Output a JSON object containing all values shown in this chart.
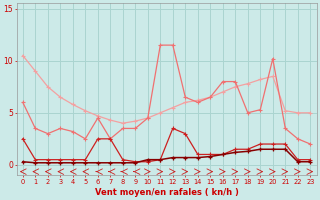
{
  "x": [
    0,
    1,
    2,
    3,
    4,
    5,
    6,
    7,
    8,
    9,
    10,
    11,
    12,
    13,
    14,
    15,
    16,
    17,
    18,
    19,
    20,
    21,
    22,
    23
  ],
  "series1": [
    10.5,
    9.0,
    7.5,
    6.5,
    5.8,
    5.2,
    4.7,
    4.3,
    4.0,
    4.2,
    4.5,
    5.0,
    5.5,
    6.0,
    6.2,
    6.5,
    7.0,
    7.5,
    7.8,
    8.2,
    8.5,
    5.2,
    5.0,
    5.0
  ],
  "series2": [
    6.0,
    3.5,
    3.0,
    3.5,
    3.2,
    2.5,
    4.5,
    2.5,
    3.5,
    3.5,
    4.5,
    11.5,
    11.5,
    6.5,
    6.0,
    6.5,
    8.0,
    8.0,
    5.0,
    5.3,
    10.2,
    3.5,
    2.5,
    2.0
  ],
  "series3": [
    2.5,
    0.5,
    0.5,
    0.5,
    0.5,
    0.5,
    2.5,
    2.5,
    0.5,
    0.3,
    0.3,
    0.5,
    3.5,
    3.0,
    1.0,
    1.0,
    1.0,
    1.5,
    1.5,
    2.0,
    2.0,
    2.0,
    0.5,
    0.5
  ],
  "series4": [
    0.3,
    0.2,
    0.2,
    0.2,
    0.2,
    0.2,
    0.2,
    0.2,
    0.2,
    0.2,
    0.5,
    0.5,
    0.7,
    0.7,
    0.7,
    0.8,
    1.0,
    1.2,
    1.3,
    1.5,
    1.5,
    1.5,
    0.3,
    0.3
  ],
  "color_s1": "#f4a0a0",
  "color_s2": "#f07070",
  "color_s3": "#cc2020",
  "color_s4": "#880000",
  "bg_color": "#cceae8",
  "grid_color": "#aad4d0",
  "axis_color": "#cc0000",
  "text_color": "#cc0000",
  "xlabel": "Vent moyen/en rafales ( kn/h )",
  "ylim": [
    -1.0,
    15.5
  ],
  "yticks": [
    0,
    5,
    10,
    15
  ],
  "xlim": [
    -0.5,
    23.5
  ]
}
